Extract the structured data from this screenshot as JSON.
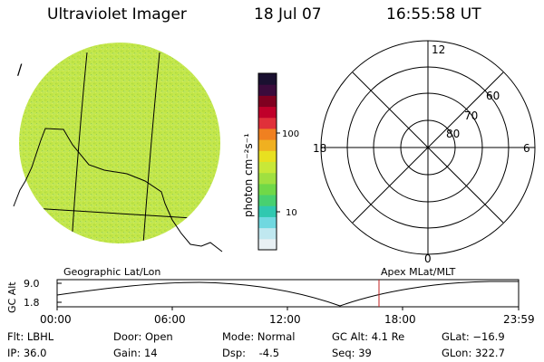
{
  "header": {
    "title": "Ultraviolet Imager",
    "date": "18 Jul 07",
    "time": "16:55:58 UT"
  },
  "colorbar": {
    "unit_label": "photon cm⁻²s⁻¹",
    "tick_labels": [
      "100",
      "10"
    ],
    "colors": [
      "#1a1030",
      "#3b0b3c",
      "#800020",
      "#c0002a",
      "#e0303a",
      "#f08020",
      "#f0b020",
      "#e8e020",
      "#c8e838",
      "#a0e040",
      "#70d848",
      "#48d070",
      "#30c8b0",
      "#70d8e0",
      "#c0e8f0",
      "#e8f0f4"
    ]
  },
  "image_panel": {
    "disk_color": "#c6e84a",
    "marker": "/"
  },
  "polar_grid": {
    "mlt_labels": {
      "top": "12",
      "bottom": "0",
      "left": "18",
      "right": "6"
    },
    "lat_labels": [
      "60",
      "70",
      "80"
    ]
  },
  "orbit_plot": {
    "left_title": "Geographic Lat/Lon",
    "right_title": "Apex MLat/MLT",
    "ylabel": "GC Alt",
    "y_ticks": [
      "9.0",
      "1.8"
    ],
    "x_ticks": [
      "00:00",
      "06:00",
      "12:00",
      "18:00",
      "23:59"
    ],
    "current_time_color": "#c02020"
  },
  "info": {
    "flt": "Flt: LBHL",
    "ip": "IP: 36.0",
    "door": "Door: Open",
    "gain": "Gain: 14",
    "mode": "Mode: Normal",
    "dsp": "Dsp:    -4.5",
    "gc_alt": "GC Alt: 4.1 Re",
    "seq": "Seq: 39",
    "glat": "GLat: −16.9",
    "glon": "GLon: 322.7"
  }
}
